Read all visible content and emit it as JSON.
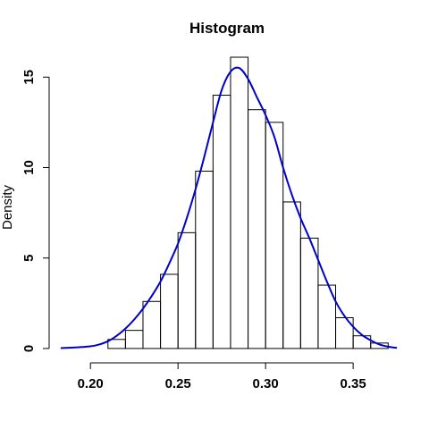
{
  "chart_data": {
    "type": "bar",
    "title": "Histogram",
    "xlabel": "",
    "ylabel": "Density",
    "xlim": [
      0.18,
      0.378
    ],
    "ylim": [
      -0.4,
      16.2
    ],
    "grid": false,
    "x_ticks": [
      0.2,
      0.25,
      0.3,
      0.35
    ],
    "x_tick_labels": [
      "0.20",
      "0.25",
      "0.30",
      "0.35"
    ],
    "y_ticks": [
      0,
      5,
      10,
      15
    ],
    "y_tick_labels": [
      "0",
      "5",
      "10",
      "15"
    ],
    "bin_edges": [
      0.21,
      0.22,
      0.23,
      0.24,
      0.25,
      0.26,
      0.27,
      0.28,
      0.29,
      0.3,
      0.31,
      0.32,
      0.33,
      0.34,
      0.35,
      0.36,
      0.37
    ],
    "values": [
      0.5,
      1.0,
      2.6,
      4.1,
      6.4,
      9.8,
      14.0,
      16.1,
      13.2,
      12.5,
      8.1,
      6.1,
      3.5,
      1.7,
      0.7,
      0.3
    ],
    "density_curve": {
      "color": "#0000cd",
      "x": [
        0.183,
        0.19,
        0.2,
        0.205,
        0.21,
        0.215,
        0.22,
        0.225,
        0.23,
        0.235,
        0.24,
        0.245,
        0.25,
        0.255,
        0.26,
        0.265,
        0.27,
        0.275,
        0.28,
        0.285,
        0.29,
        0.295,
        0.3,
        0.305,
        0.31,
        0.315,
        0.32,
        0.325,
        0.33,
        0.335,
        0.34,
        0.345,
        0.35,
        0.355,
        0.36,
        0.365,
        0.37,
        0.375
      ],
      "y": [
        0.02,
        0.05,
        0.12,
        0.22,
        0.4,
        0.7,
        1.1,
        1.6,
        2.2,
        2.9,
        3.7,
        4.7,
        5.8,
        7.2,
        8.8,
        10.6,
        12.5,
        14.3,
        15.3,
        15.5,
        14.9,
        13.9,
        12.9,
        11.7,
        10.0,
        8.5,
        7.2,
        6.1,
        4.9,
        3.7,
        2.6,
        1.8,
        1.2,
        0.75,
        0.45,
        0.22,
        0.1,
        0.03
      ]
    }
  }
}
